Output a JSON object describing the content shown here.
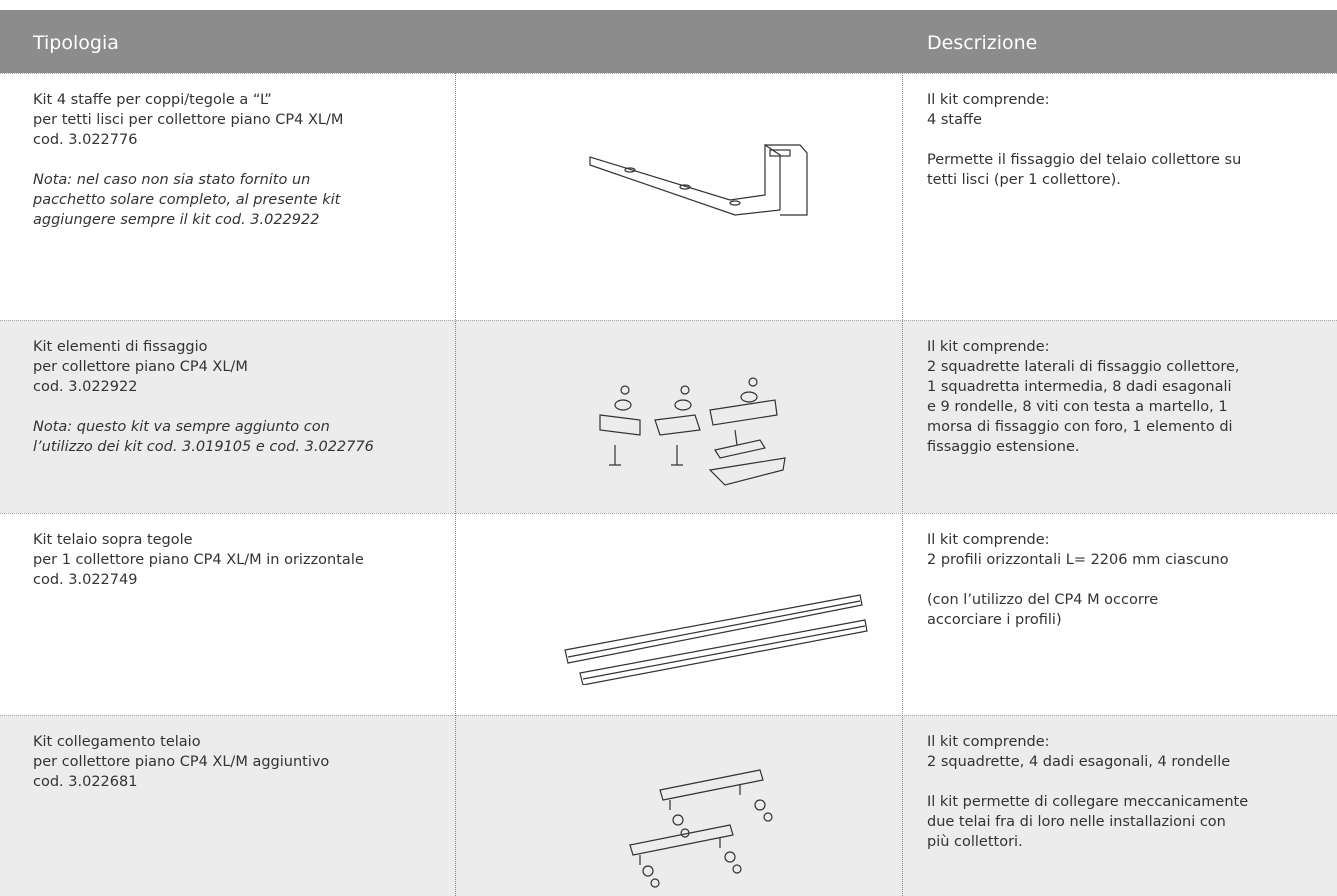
{
  "header": {
    "tipologia": "Tipologia",
    "descrizione": "Descrizione"
  },
  "rows": [
    {
      "name": [
        "Kit 4 staffe per coppi/tegole a “L”",
        "per tetti lisci per collettore piano CP4 XL/M",
        "cod. 3.022776"
      ],
      "note": [
        "Nota: nel caso non sia stato fornito un",
        "pacchetto solare completo, al presente kit",
        "aggiungere sempre il kit cod. 3.022922"
      ],
      "description": [
        [
          "Il kit comprende:",
          "4 staffe"
        ],
        [
          "Permette il fissaggio del telaio collettore su",
          "tetti lisci (per 1 collettore)."
        ]
      ]
    },
    {
      "name": [
        "Kit elementi di fissaggio",
        "per collettore piano CP4 XL/M",
        "cod. 3.022922"
      ],
      "note": [
        "Nota: questo kit va sempre aggiunto con",
        "l’utilizzo dei kit cod. 3.019105 e cod. 3.022776"
      ],
      "description": [
        [
          "Il kit comprende:",
          "2 squadrette laterali di fissaggio collettore,",
          "1 squadretta intermedia, 8 dadi esagonali",
          "e 9 rondelle, 8 viti con testa a martello, 1",
          "morsa di fissaggio con foro, 1 elemento di",
          "fissaggio estensione."
        ]
      ]
    },
    {
      "name": [
        "Kit telaio sopra tegole",
        "per 1 collettore piano CP4 XL/M in orizzontale",
        "cod. 3.022749"
      ],
      "description": [
        [
          "Il kit comprende:",
          "2 profili orizzontali L= 2206 mm ciascuno"
        ],
        [
          "(con l’utilizzo del CP4 M occorre",
          "accorciare i profili)"
        ]
      ]
    },
    {
      "name": [
        "Kit collegamento telaio",
        "per collettore piano CP4 XL/M aggiuntivo",
        "cod. 3.022681"
      ],
      "description": [
        [
          "Il kit comprende:",
          "2 squadrette, 4 dadi esagonali, 4 rondelle"
        ],
        [
          "Il kit permette di collegare meccanicamente",
          "due telai fra di loro nelle installazioni con",
          "più collettori."
        ]
      ]
    }
  ]
}
